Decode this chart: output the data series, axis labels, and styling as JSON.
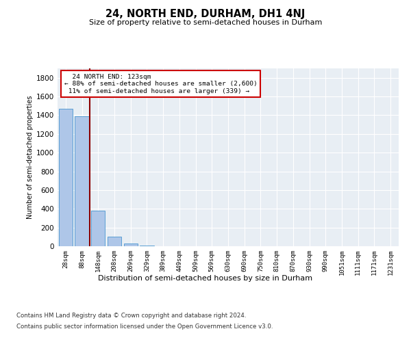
{
  "title": "24, NORTH END, DURHAM, DH1 4NJ",
  "subtitle": "Size of property relative to semi-detached houses in Durham",
  "xlabel": "Distribution of semi-detached houses by size in Durham",
  "ylabel": "Number of semi-detached properties",
  "categories": [
    "28sqm",
    "88sqm",
    "148sqm",
    "208sqm",
    "269sqm",
    "329sqm",
    "389sqm",
    "449sqm",
    "509sqm",
    "569sqm",
    "630sqm",
    "690sqm",
    "750sqm",
    "810sqm",
    "870sqm",
    "930sqm",
    "990sqm",
    "1051sqm",
    "1111sqm",
    "1171sqm",
    "1231sqm"
  ],
  "values": [
    1470,
    1390,
    380,
    100,
    30,
    5,
    2,
    1,
    1,
    1,
    1,
    1,
    1,
    1,
    1,
    1,
    1,
    1,
    1,
    1,
    1
  ],
  "bar_color": "#aec6e8",
  "bar_edge_color": "#5a9fd4",
  "highlight_line_color": "#8b0000",
  "annotation_title": "24 NORTH END: 123sqm",
  "annotation_line1": "← 88% of semi-detached houses are smaller (2,600)",
  "annotation_line2": "11% of semi-detached houses are larger (339) →",
  "annotation_box_color": "#ffffff",
  "annotation_box_edge": "#cc0000",
  "ylim": [
    0,
    1900
  ],
  "yticks": [
    0,
    200,
    400,
    600,
    800,
    1000,
    1200,
    1400,
    1600,
    1800
  ],
  "bg_color": "#e8eef4",
  "footer_line1": "Contains HM Land Registry data © Crown copyright and database right 2024.",
  "footer_line2": "Contains public sector information licensed under the Open Government Licence v3.0."
}
